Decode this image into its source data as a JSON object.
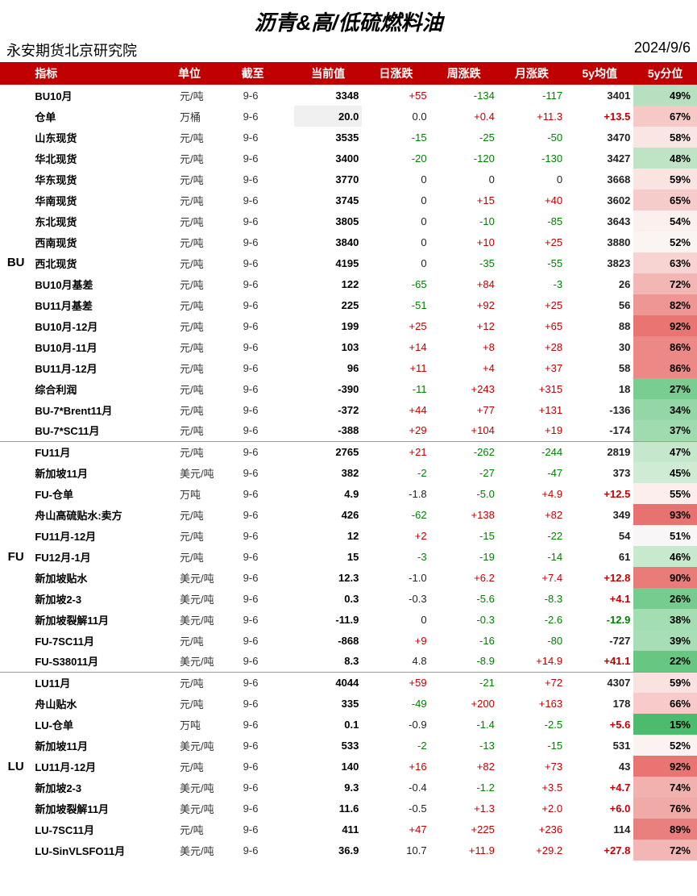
{
  "title": "沥青&高/低硫燃料油",
  "org": "永安期货北京研究院",
  "report_date": "2024/9/6",
  "headers": [
    "",
    "指标",
    "单位",
    "截至",
    "当前值",
    "日涨跌",
    "周涨跌",
    "月涨跌",
    "5y均值",
    "5y分位"
  ],
  "colors": {
    "header_bg": "#c00000",
    "header_fg": "#ffffff",
    "pos": "#c00000",
    "neg": "#008000",
    "neu": "#222222"
  },
  "pct_scale": {
    "low_color": "#18a558",
    "mid_color": "#ffffff",
    "high_color": "#e74c3c"
  },
  "groups": [
    {
      "name": "BU",
      "rows": [
        {
          "ind": "BU10月",
          "unit": "元/吨",
          "date": "9-6",
          "cur": "3348",
          "cur_bg": "#ffffff",
          "d": "+55",
          "dC": "pos",
          "w": "-134",
          "wC": "neg",
          "m": "-117",
          "mC": "neg",
          "avg": "3401",
          "avgC": "neu",
          "pct": "49%",
          "pctBg": "#b7e0c0"
        },
        {
          "ind": "仓单",
          "unit": "万桶",
          "date": "9-6",
          "cur": "20.0",
          "cur_bg": "#f0f0f0",
          "d": "0.0",
          "dC": "neu",
          "w": "+0.4",
          "wC": "pos",
          "m": "+11.3",
          "mC": "pos",
          "avg": "+13.5",
          "avgC": "pos",
          "pct": "67%",
          "pctBg": "#f6c9c7"
        },
        {
          "ind": "山东现货",
          "unit": "元/吨",
          "date": "9-6",
          "cur": "3535",
          "cur_bg": "#ffffff",
          "d": "-15",
          "dC": "neg",
          "w": "-25",
          "wC": "neg",
          "m": "-50",
          "mC": "neg",
          "avg": "3470",
          "avgC": "neu",
          "pct": "58%",
          "pctBg": "#f9e6e4"
        },
        {
          "ind": "华北现货",
          "unit": "元/吨",
          "date": "9-6",
          "cur": "3400",
          "cur_bg": "#ffffff",
          "d": "-20",
          "dC": "neg",
          "w": "-120",
          "wC": "neg",
          "m": "-130",
          "mC": "neg",
          "avg": "3427",
          "avgC": "neu",
          "pct": "48%",
          "pctBg": "#bfe4c5"
        },
        {
          "ind": "华东现货",
          "unit": "元/吨",
          "date": "9-6",
          "cur": "3770",
          "cur_bg": "#ffffff",
          "d": "0",
          "dC": "neu",
          "w": "0",
          "wC": "neu",
          "m": "0",
          "mC": "neu",
          "avg": "3668",
          "avgC": "neu",
          "pct": "59%",
          "pctBg": "#fae4e2"
        },
        {
          "ind": "华南现货",
          "unit": "元/吨",
          "date": "9-6",
          "cur": "3745",
          "cur_bg": "#ffffff",
          "d": "0",
          "dC": "neu",
          "w": "+15",
          "wC": "pos",
          "m": "+40",
          "mC": "pos",
          "avg": "3602",
          "avgC": "neu",
          "pct": "65%",
          "pctBg": "#f6cccb"
        },
        {
          "ind": "东北现货",
          "unit": "元/吨",
          "date": "9-6",
          "cur": "3805",
          "cur_bg": "#ffffff",
          "d": "0",
          "dC": "neu",
          "w": "-10",
          "wC": "neg",
          "m": "-85",
          "mC": "neg",
          "avg": "3643",
          "avgC": "neu",
          "pct": "54%",
          "pctBg": "#fbf0ee"
        },
        {
          "ind": "西南现货",
          "unit": "元/吨",
          "date": "9-6",
          "cur": "3840",
          "cur_bg": "#ffffff",
          "d": "0",
          "dC": "neu",
          "w": "+10",
          "wC": "pos",
          "m": "+25",
          "mC": "pos",
          "avg": "3880",
          "avgC": "neu",
          "pct": "52%",
          "pctBg": "#faf4f2"
        },
        {
          "ind": "西北现货",
          "unit": "元/吨",
          "date": "9-6",
          "cur": "4195",
          "cur_bg": "#ffffff",
          "d": "0",
          "dC": "neu",
          "w": "-35",
          "wC": "neg",
          "m": "-55",
          "mC": "neg",
          "avg": "3823",
          "avgC": "neu",
          "pct": "63%",
          "pctBg": "#f7d3d1"
        },
        {
          "ind": "BU10月基差",
          "unit": "元/吨",
          "date": "9-6",
          "cur": "122",
          "cur_bg": "#ffffff",
          "d": "-65",
          "dC": "neg",
          "w": "+84",
          "wC": "pos",
          "m": "-3",
          "mC": "neg",
          "avg": "26",
          "avgC": "neu",
          "pct": "72%",
          "pctBg": "#f2b6b4"
        },
        {
          "ind": "BU11月基差",
          "unit": "元/吨",
          "date": "9-6",
          "cur": "225",
          "cur_bg": "#ffffff",
          "d": "-51",
          "dC": "neg",
          "w": "+92",
          "wC": "pos",
          "m": "+25",
          "mC": "pos",
          "avg": "56",
          "avgC": "neu",
          "pct": "82%",
          "pctBg": "#ee9693"
        },
        {
          "ind": "BU10月-12月",
          "unit": "元/吨",
          "date": "9-6",
          "cur": "199",
          "cur_bg": "#ffffff",
          "d": "+25",
          "dC": "pos",
          "w": "+12",
          "wC": "pos",
          "m": "+65",
          "mC": "pos",
          "avg": "88",
          "avgC": "neu",
          "pct": "92%",
          "pctBg": "#e87572"
        },
        {
          "ind": "BU10月-11月",
          "unit": "元/吨",
          "date": "9-6",
          "cur": "103",
          "cur_bg": "#ffffff",
          "d": "+14",
          "dC": "pos",
          "w": "+8",
          "wC": "pos",
          "m": "+28",
          "mC": "pos",
          "avg": "30",
          "avgC": "neu",
          "pct": "86%",
          "pctBg": "#ec8986"
        },
        {
          "ind": "BU11月-12月",
          "unit": "元/吨",
          "date": "9-6",
          "cur": "96",
          "cur_bg": "#ffffff",
          "d": "+11",
          "dC": "pos",
          "w": "+4",
          "wC": "pos",
          "m": "+37",
          "mC": "pos",
          "avg": "58",
          "avgC": "neu",
          "pct": "86%",
          "pctBg": "#ec8986"
        },
        {
          "ind": "综合利润",
          "unit": "元/吨",
          "date": "9-6",
          "cur": "-390",
          "cur_bg": "#ffffff",
          "d": "-11",
          "dC": "neg",
          "w": "+243",
          "wC": "pos",
          "m": "+315",
          "mC": "pos",
          "avg": "18",
          "avgC": "neu",
          "pct": "27%",
          "pctBg": "#79cd91"
        },
        {
          "ind": "BU-7*Brent11月",
          "unit": "元/吨",
          "date": "9-6",
          "cur": "-372",
          "cur_bg": "#ffffff",
          "d": "+44",
          "dC": "pos",
          "w": "+77",
          "wC": "pos",
          "m": "+131",
          "mC": "pos",
          "avg": "-136",
          "avgC": "neu",
          "pct": "34%",
          "pctBg": "#94d6a6"
        },
        {
          "ind": "BU-7*SC11月",
          "unit": "元/吨",
          "date": "9-6",
          "cur": "-388",
          "cur_bg": "#ffffff",
          "d": "+29",
          "dC": "pos",
          "w": "+104",
          "wC": "pos",
          "m": "+19",
          "mC": "pos",
          "avg": "-174",
          "avgC": "neu",
          "pct": "37%",
          "pctBg": "#9fdbaf"
        }
      ]
    },
    {
      "name": "FU",
      "rows": [
        {
          "ind": "FU11月",
          "unit": "元/吨",
          "date": "9-6",
          "cur": "2765",
          "cur_bg": "#ffffff",
          "d": "+21",
          "dC": "pos",
          "w": "-262",
          "wC": "neg",
          "m": "-244",
          "mC": "neg",
          "avg": "2819",
          "avgC": "neu",
          "pct": "47%",
          "pctBg": "#c5e7cb"
        },
        {
          "ind": "新加坡11月",
          "unit": "美元/吨",
          "date": "9-6",
          "cur": "382",
          "cur_bg": "#ffffff",
          "d": "-2",
          "dC": "neg",
          "w": "-27",
          "wC": "neg",
          "m": "-47",
          "mC": "neg",
          "avg": "373",
          "avgC": "neu",
          "pct": "45%",
          "pctBg": "#cfebd3"
        },
        {
          "ind": "FU-仓单",
          "unit": "万吨",
          "date": "9-6",
          "cur": "4.9",
          "cur_bg": "#ffffff",
          "d": "-1.8",
          "dC": "neu",
          "w": "-5.0",
          "wC": "neg",
          "m": "+4.9",
          "mC": "pos",
          "avg": "+12.5",
          "avgC": "pos",
          "pct": "55%",
          "pctBg": "#fbeeec"
        },
        {
          "ind": "舟山高硫贴水:卖方",
          "unit": "元/吨",
          "date": "9-6",
          "cur": "426",
          "cur_bg": "#ffffff",
          "d": "-62",
          "dC": "neg",
          "w": "+138",
          "wC": "pos",
          "m": "+82",
          "mC": "pos",
          "avg": "349",
          "avgC": "neu",
          "pct": "93%",
          "pctBg": "#e7726f"
        },
        {
          "ind": "FU11月-12月",
          "unit": "元/吨",
          "date": "9-6",
          "cur": "12",
          "cur_bg": "#ffffff",
          "d": "+2",
          "dC": "pos",
          "w": "-15",
          "wC": "neg",
          "m": "-22",
          "mC": "neg",
          "avg": "54",
          "avgC": "neu",
          "pct": "51%",
          "pctBg": "#f8f6f6"
        },
        {
          "ind": "FU12月-1月",
          "unit": "元/吨",
          "date": "9-6",
          "cur": "15",
          "cur_bg": "#ffffff",
          "d": "-3",
          "dC": "neg",
          "w": "-19",
          "wC": "neg",
          "m": "-14",
          "mC": "neg",
          "avg": "61",
          "avgC": "neu",
          "pct": "46%",
          "pctBg": "#c9e9cf"
        },
        {
          "ind": "新加坡贴水",
          "unit": "美元/吨",
          "date": "9-6",
          "cur": "12.3",
          "cur_bg": "#ffffff",
          "d": "-1.0",
          "dC": "neu",
          "w": "+6.2",
          "wC": "pos",
          "m": "+7.4",
          "mC": "pos",
          "avg": "+12.8",
          "avgC": "pos",
          "pct": "90%",
          "pctBg": "#e97c79"
        },
        {
          "ind": "新加坡2-3",
          "unit": "美元/吨",
          "date": "9-6",
          "cur": "0.3",
          "cur_bg": "#ffffff",
          "d": "-0.3",
          "dC": "neu",
          "w": "-5.6",
          "wC": "neg",
          "m": "-8.3",
          "mC": "neg",
          "avg": "+4.1",
          "avgC": "pos",
          "pct": "26%",
          "pctBg": "#76cc8e"
        },
        {
          "ind": "新加坡裂解11月",
          "unit": "美元/吨",
          "date": "9-6",
          "cur": "-11.9",
          "cur_bg": "#ffffff",
          "d": "0",
          "dC": "neu",
          "w": "-0.3",
          "wC": "neg",
          "m": "-2.6",
          "mC": "neg",
          "avg": "-12.9",
          "avgC": "neg",
          "pct": "38%",
          "pctBg": "#a3ddb2"
        },
        {
          "ind": "FU-7SC11月",
          "unit": "元/吨",
          "date": "9-6",
          "cur": "-868",
          "cur_bg": "#ffffff",
          "d": "+9",
          "dC": "pos",
          "w": "-16",
          "wC": "neg",
          "m": "-80",
          "mC": "neg",
          "avg": "-727",
          "avgC": "neu",
          "pct": "39%",
          "pctBg": "#a7deb5"
        },
        {
          "ind": "FU-S38011月",
          "unit": "美元/吨",
          "date": "9-6",
          "cur": "8.3",
          "cur_bg": "#ffffff",
          "d": "4.8",
          "dC": "neu",
          "w": "-8.9",
          "wC": "neg",
          "m": "+14.9",
          "mC": "pos",
          "avg": "+41.1",
          "avgC": "pos",
          "pct": "22%",
          "pctBg": "#67c682"
        }
      ]
    },
    {
      "name": "LU",
      "rows": [
        {
          "ind": "LU11月",
          "unit": "元/吨",
          "date": "9-6",
          "cur": "4044",
          "cur_bg": "#ffffff",
          "d": "+59",
          "dC": "pos",
          "w": "-21",
          "wC": "neg",
          "m": "+72",
          "mC": "pos",
          "avg": "4307",
          "avgC": "neu",
          "pct": "59%",
          "pctBg": "#fae2e0"
        },
        {
          "ind": "舟山贴水",
          "unit": "元/吨",
          "date": "9-6",
          "cur": "335",
          "cur_bg": "#ffffff",
          "d": "-49",
          "dC": "neg",
          "w": "+200",
          "wC": "pos",
          "m": "+163",
          "mC": "pos",
          "avg": "178",
          "avgC": "neu",
          "pct": "66%",
          "pctBg": "#f6cbc9"
        },
        {
          "ind": "LU-仓单",
          "unit": "万吨",
          "date": "9-6",
          "cur": "0.1",
          "cur_bg": "#ffffff",
          "d": "-0.9",
          "dC": "neu",
          "w": "-1.4",
          "wC": "neg",
          "m": "-2.5",
          "mC": "neg",
          "avg": "+5.6",
          "avgC": "pos",
          "pct": "15%",
          "pctBg": "#4cbb6d"
        },
        {
          "ind": "新加坡11月",
          "unit": "美元/吨",
          "date": "9-6",
          "cur": "533",
          "cur_bg": "#ffffff",
          "d": "-2",
          "dC": "neg",
          "w": "-13",
          "wC": "neg",
          "m": "-15",
          "mC": "neg",
          "avg": "531",
          "avgC": "neu",
          "pct": "52%",
          "pctBg": "#faf3f2"
        },
        {
          "ind": "LU11月-12月",
          "unit": "元/吨",
          "date": "9-6",
          "cur": "140",
          "cur_bg": "#ffffff",
          "d": "+16",
          "dC": "pos",
          "w": "+82",
          "wC": "pos",
          "m": "+73",
          "mC": "pos",
          "avg": "43",
          "avgC": "neu",
          "pct": "92%",
          "pctBg": "#e87572"
        },
        {
          "ind": "新加坡2-3",
          "unit": "美元/吨",
          "date": "9-6",
          "cur": "9.3",
          "cur_bg": "#ffffff",
          "d": "-0.4",
          "dC": "neu",
          "w": "-1.2",
          "wC": "neg",
          "m": "+3.5",
          "mC": "pos",
          "avg": "+4.7",
          "avgC": "pos",
          "pct": "74%",
          "pctBg": "#f1b1ae"
        },
        {
          "ind": "新加坡裂解11月",
          "unit": "美元/吨",
          "date": "9-6",
          "cur": "11.6",
          "cur_bg": "#ffffff",
          "d": "-0.5",
          "dC": "neu",
          "w": "+1.3",
          "wC": "pos",
          "m": "+2.0",
          "mC": "pos",
          "avg": "+6.0",
          "avgC": "pos",
          "pct": "76%",
          "pctBg": "#f0aaa7"
        },
        {
          "ind": "LU-7SC11月",
          "unit": "元/吨",
          "date": "9-6",
          "cur": "411",
          "cur_bg": "#ffffff",
          "d": "+47",
          "dC": "pos",
          "w": "+225",
          "wC": "pos",
          "m": "+236",
          "mC": "pos",
          "avg": "114",
          "avgC": "neu",
          "pct": "89%",
          "pctBg": "#ea807d"
        },
        {
          "ind": "LU-SinVLSFO11月",
          "unit": "美元/吨",
          "date": "9-6",
          "cur": "36.9",
          "cur_bg": "#ffffff",
          "d": "10.7",
          "dC": "neu",
          "w": "+11.9",
          "wC": "pos",
          "m": "+29.2",
          "mC": "pos",
          "avg": "+27.8",
          "avgC": "pos",
          "pct": "72%",
          "pctBg": "#f2b6b4"
        }
      ]
    }
  ]
}
